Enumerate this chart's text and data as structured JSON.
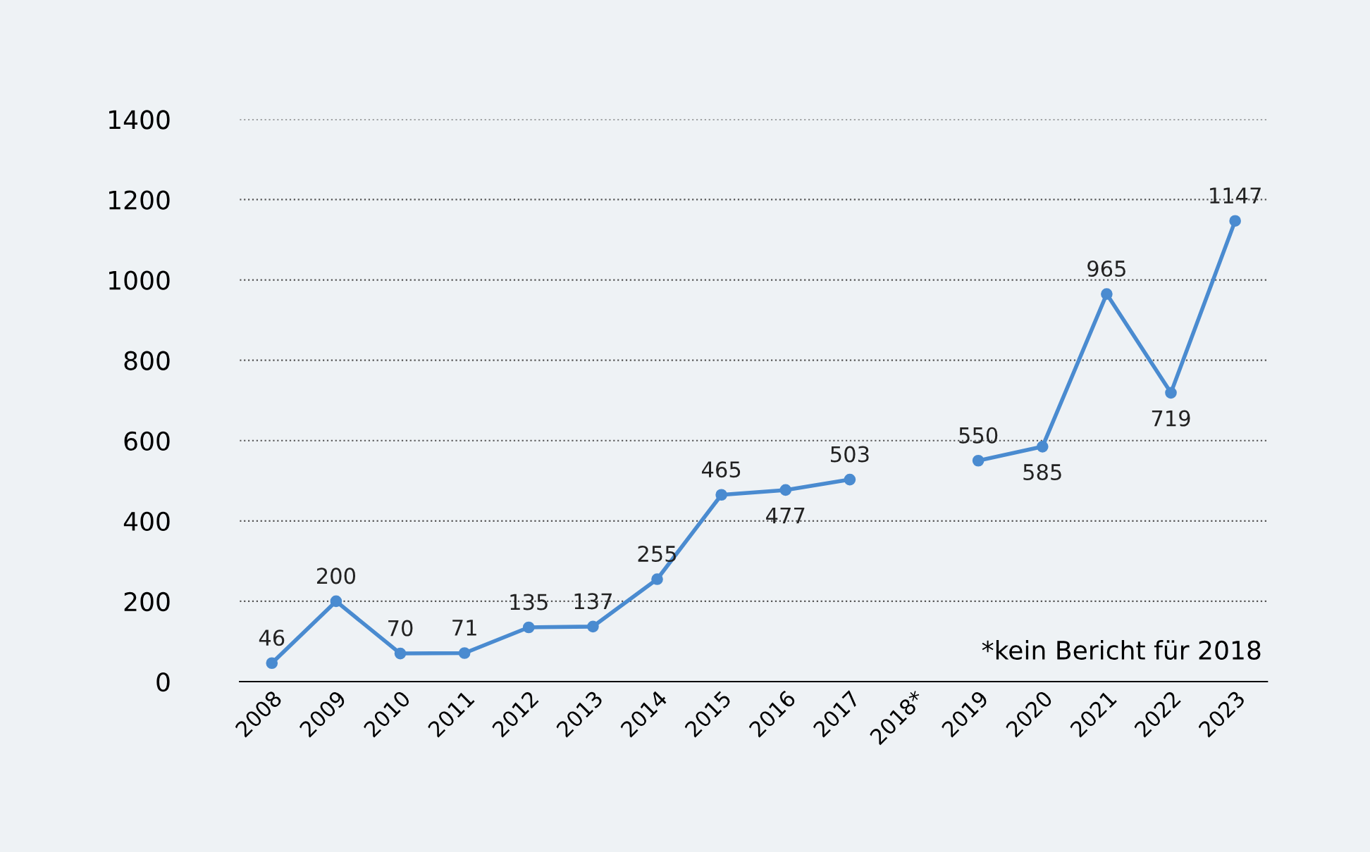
{
  "chart_data": {
    "type": "line",
    "categories": [
      "2008",
      "2009",
      "2010",
      "2011",
      "2012",
      "2013",
      "2014",
      "2015",
      "2016",
      "2017",
      "2018*",
      "2019",
      "2020",
      "2021",
      "2022",
      "2023"
    ],
    "series": [
      {
        "color": "#4a8bd0",
        "values": [
          46,
          200,
          70,
          71,
          135,
          137,
          255,
          465,
          477,
          503,
          null,
          550,
          585,
          965,
          719,
          1147
        ]
      }
    ],
    "ylim": [
      0,
      1400
    ],
    "yticks": [
      0,
      200,
      400,
      600,
      800,
      1000,
      1200,
      1400
    ],
    "grid": "y",
    "marker": "circle",
    "line_style": "solid",
    "data_labels": true,
    "annotations": [
      "*kein Bericht für 2018"
    ]
  }
}
